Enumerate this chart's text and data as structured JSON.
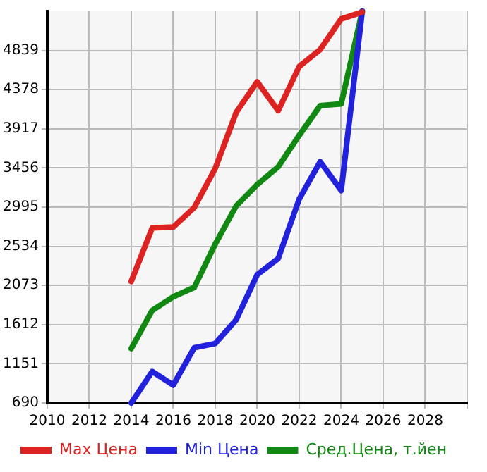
{
  "chart_data": {
    "type": "line",
    "x": [
      2014,
      2015,
      2016,
      2017,
      2018,
      2019,
      2020,
      2021,
      2022,
      2023,
      2024,
      2025
    ],
    "series": [
      {
        "name": "Max Цена",
        "color": "#dd2222",
        "values": [
          2120,
          2750,
          2760,
          2990,
          3450,
          4110,
          4470,
          4130,
          4650,
          4850,
          5210,
          5290
        ]
      },
      {
        "name": "Min Цена",
        "color": "#2222dd",
        "values": [
          690,
          1060,
          900,
          1340,
          1390,
          1670,
          2200,
          2390,
          3090,
          3530,
          3190,
          5300
        ]
      },
      {
        "name": "Сред.Цена, т.йен",
        "color": "#118811",
        "values": [
          1330,
          1780,
          1940,
          2050,
          2560,
          3010,
          3260,
          3470,
          3840,
          4190,
          4210,
          5300
        ]
      }
    ],
    "xlim": [
      2010,
      2030
    ],
    "xticks": [
      2010,
      2012,
      2014,
      2016,
      2018,
      2020,
      2022,
      2024,
      2026,
      2028,
      {
        "value": 2030,
        "label": null
      }
    ],
    "ylim": [
      690,
      5300
    ],
    "yticks": [
      690,
      1151,
      1612,
      2073,
      2534,
      2995,
      3456,
      3917,
      4378,
      4839
    ],
    "grid": true,
    "legend": "bottom",
    "marker": "none",
    "line_style": "solid"
  }
}
